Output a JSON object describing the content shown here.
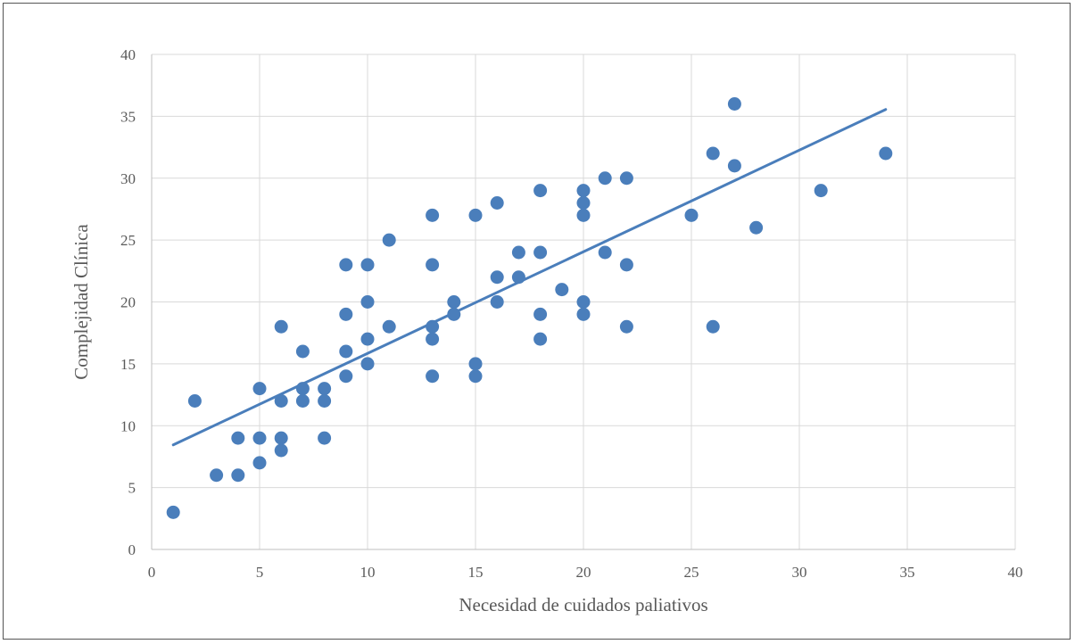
{
  "chart_data": {
    "type": "scatter",
    "title": "",
    "xlabel": "Necesidad de cuidados paliativos",
    "ylabel": "Complejidad Clínica",
    "xlim": [
      0,
      40
    ],
    "ylim": [
      0,
      40
    ],
    "xticks": [
      0,
      5,
      10,
      15,
      20,
      25,
      30,
      35,
      40
    ],
    "yticks": [
      0,
      5,
      10,
      15,
      20,
      25,
      30,
      35,
      40
    ],
    "grid": true,
    "legend": "none",
    "colors": {
      "points": "#4a7ebb",
      "trendline": "#4a7ebb",
      "grid": "#d9d9d9",
      "text": "#595959"
    },
    "points": [
      {
        "x": 1,
        "y": 3
      },
      {
        "x": 2,
        "y": 12
      },
      {
        "x": 3,
        "y": 6
      },
      {
        "x": 4,
        "y": 6
      },
      {
        "x": 4,
        "y": 9
      },
      {
        "x": 5,
        "y": 13
      },
      {
        "x": 5,
        "y": 9
      },
      {
        "x": 5,
        "y": 7
      },
      {
        "x": 6,
        "y": 18
      },
      {
        "x": 6,
        "y": 12
      },
      {
        "x": 6,
        "y": 9
      },
      {
        "x": 6,
        "y": 8
      },
      {
        "x": 7,
        "y": 16
      },
      {
        "x": 7,
        "y": 13
      },
      {
        "x": 7,
        "y": 12
      },
      {
        "x": 8,
        "y": 13
      },
      {
        "x": 8,
        "y": 12
      },
      {
        "x": 8,
        "y": 9
      },
      {
        "x": 9,
        "y": 23
      },
      {
        "x": 9,
        "y": 19
      },
      {
        "x": 9,
        "y": 16
      },
      {
        "x": 9,
        "y": 14
      },
      {
        "x": 10,
        "y": 23
      },
      {
        "x": 10,
        "y": 20
      },
      {
        "x": 10,
        "y": 17
      },
      {
        "x": 10,
        "y": 15
      },
      {
        "x": 11,
        "y": 25
      },
      {
        "x": 11,
        "y": 18
      },
      {
        "x": 13,
        "y": 27
      },
      {
        "x": 13,
        "y": 23
      },
      {
        "x": 13,
        "y": 18
      },
      {
        "x": 13,
        "y": 17
      },
      {
        "x": 13,
        "y": 14
      },
      {
        "x": 14,
        "y": 20
      },
      {
        "x": 14,
        "y": 19
      },
      {
        "x": 15,
        "y": 27
      },
      {
        "x": 15,
        "y": 15
      },
      {
        "x": 15,
        "y": 14
      },
      {
        "x": 16,
        "y": 28
      },
      {
        "x": 16,
        "y": 22
      },
      {
        "x": 16,
        "y": 20
      },
      {
        "x": 17,
        "y": 24
      },
      {
        "x": 17,
        "y": 22
      },
      {
        "x": 18,
        "y": 29
      },
      {
        "x": 18,
        "y": 24
      },
      {
        "x": 18,
        "y": 19
      },
      {
        "x": 18,
        "y": 17
      },
      {
        "x": 19,
        "y": 21
      },
      {
        "x": 20,
        "y": 29
      },
      {
        "x": 20,
        "y": 28
      },
      {
        "x": 20,
        "y": 27
      },
      {
        "x": 20,
        "y": 20
      },
      {
        "x": 20,
        "y": 19
      },
      {
        "x": 21,
        "y": 30
      },
      {
        "x": 21,
        "y": 24
      },
      {
        "x": 22,
        "y": 30
      },
      {
        "x": 22,
        "y": 23
      },
      {
        "x": 22,
        "y": 18
      },
      {
        "x": 25,
        "y": 27
      },
      {
        "x": 26,
        "y": 32
      },
      {
        "x": 26,
        "y": 18
      },
      {
        "x": 27,
        "y": 36
      },
      {
        "x": 27,
        "y": 31
      },
      {
        "x": 28,
        "y": 26
      },
      {
        "x": 31,
        "y": 29
      },
      {
        "x": 34,
        "y": 32
      }
    ],
    "trendline": {
      "x": [
        1,
        34
      ],
      "y": [
        8.45,
        35.55
      ]
    }
  }
}
